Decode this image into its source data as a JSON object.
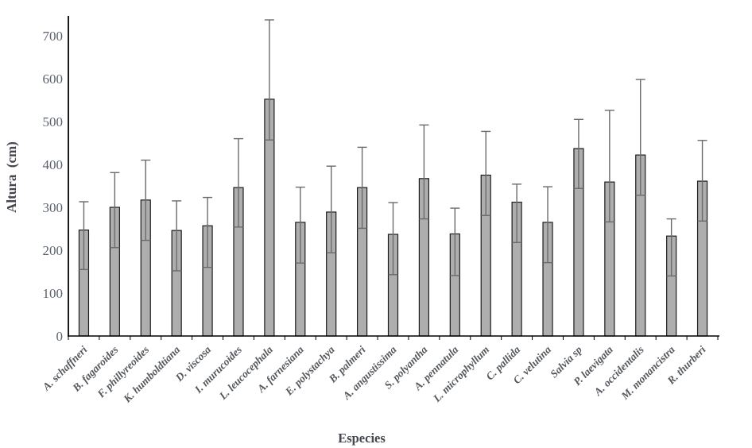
{
  "chart_data": {
    "type": "bar",
    "title": "",
    "xlabel": "Especies",
    "ylabel": "Altura  (cm)",
    "ylim": [
      0,
      750
    ],
    "yticks": [
      0,
      100,
      200,
      300,
      400,
      500,
      600,
      700
    ],
    "grid": false,
    "legend": null,
    "categories": [
      "A. schaffneri",
      "B. fagaroides",
      "F. phillyreoides",
      "K. humboldtiana",
      "D. viscosa",
      "I. murucoides",
      "L. leucocephala",
      "A. farnesiana",
      "E. polystachya",
      "B. palmeri",
      "A. angustissima",
      "S. polyantha",
      "A. pennatula",
      "L. microphyllum",
      "C. pallida",
      "C. velutina",
      "Salvia sp",
      "P. laevigata",
      "A. occidentalis",
      "M. monancistra",
      "R. thurberi"
    ],
    "series": [
      {
        "name": "Altura",
        "values": [
          247,
          300,
          317,
          246,
          257,
          346,
          552,
          265,
          289,
          346,
          237,
          367,
          238,
          375,
          312,
          265,
          437,
          359,
          422,
          233,
          361
        ],
        "error_upper": [
          313,
          381,
          410,
          315,
          323,
          460,
          737,
          347,
          396,
          440,
          311,
          492,
          298,
          477,
          354,
          348,
          505,
          526,
          598,
          273,
          456
        ],
        "error_lower": [
          155,
          206,
          223,
          152,
          160,
          254,
          457,
          170,
          194,
          251,
          143,
          273,
          141,
          281,
          218,
          171,
          344,
          266,
          328,
          140,
          268
        ]
      }
    ],
    "colors": {
      "bar_fill": "#aeaeae",
      "bar_stroke": "#1c1c1c",
      "error_bar": "#6b6b6b",
      "axis": "#000000",
      "y_tick_label": "#5b626d",
      "x_tick_label": "#53575c",
      "axis_title": "#43474d",
      "background": "#ffffff"
    }
  }
}
